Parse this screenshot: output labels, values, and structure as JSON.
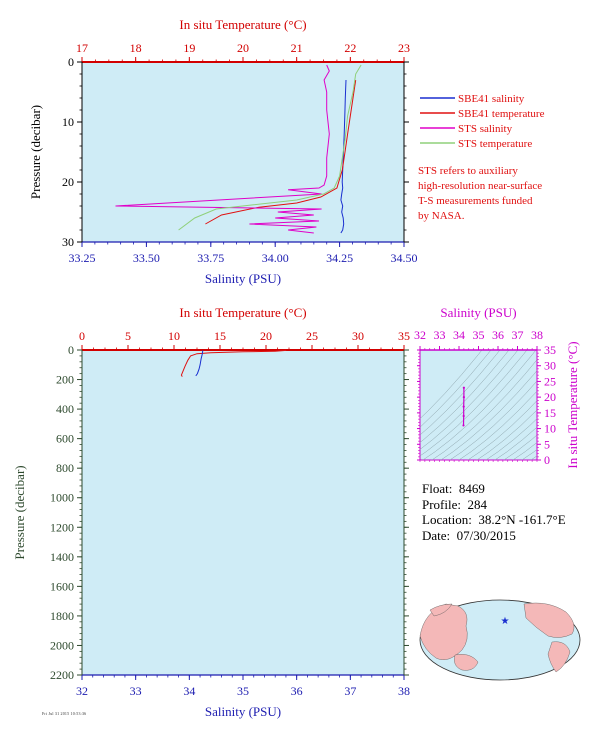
{
  "colors": {
    "plot_bg": "#cfecf6",
    "salinity_axis": "#1c1cb0",
    "temperature_axis": "#d20000",
    "pressure_axis_top": "#000000",
    "pressure_axis_bottom": "#2e4a2e",
    "magenta": "#cc00cc",
    "sbe41_salinity": "#1a2fd0",
    "sbe41_temperature": "#e01010",
    "sts_salinity": "#e000c8",
    "sts_temperature": "#8fd07a",
    "map_land": "#f4b8b8",
    "map_ocean": "#cfecf6",
    "float_marker": "#1a2fd0"
  },
  "top_chart": {
    "temp_axis_title": "In situ Temperature (°C)",
    "temp_ticks": [
      17,
      18,
      19,
      20,
      21,
      22,
      23
    ],
    "temp_range": [
      17,
      23
    ],
    "sal_axis_title": "Salinity (PSU)",
    "sal_ticks": [
      "33.25",
      "33.50",
      "33.75",
      "34.00",
      "34.25",
      "34.50"
    ],
    "sal_range": [
      33.25,
      34.5
    ],
    "pressure_axis_title": "Pressure (decibar)",
    "pressure_ticks": [
      0,
      10,
      20,
      30
    ],
    "pressure_range": [
      0,
      30
    ],
    "legend": [
      {
        "label": "SBE41 salinity",
        "color": "#1a2fd0"
      },
      {
        "label": "SBE41 temperature",
        "color": "#e01010"
      },
      {
        "label": "STS salinity",
        "color": "#e000c8"
      },
      {
        "label": "STS temperature",
        "color": "#8fd07a"
      }
    ],
    "note_lines": [
      "STS refers to auxiliary",
      "high-resolution near-surface",
      "T-S measurements funded",
      "by NASA."
    ]
  },
  "bottom_chart": {
    "temp_axis_title": "In situ Temperature (°C)",
    "temp_ticks": [
      0,
      5,
      10,
      15,
      20,
      25,
      30,
      35
    ],
    "temp_range": [
      0,
      35
    ],
    "sal_axis_title": "Salinity (PSU)",
    "sal_ticks": [
      32,
      33,
      34,
      35,
      36,
      37,
      38
    ],
    "sal_range": [
      32,
      38
    ],
    "pressure_axis_title": "Pressure (decibar)",
    "pressure_ticks": [
      0,
      200,
      400,
      600,
      800,
      1000,
      1200,
      1400,
      1600,
      1800,
      2000,
      2200
    ],
    "pressure_range": [
      0,
      2200
    ]
  },
  "ts_diagram": {
    "sal_axis_title": "Salinity (PSU)",
    "sal_ticks": [
      32,
      33,
      34,
      35,
      36,
      37,
      38
    ],
    "sal_range": [
      32,
      38
    ],
    "temp_axis_title": "In situ Temperature (°C)",
    "temp_ticks": [
      0,
      5,
      10,
      15,
      20,
      25,
      30,
      35
    ],
    "temp_range": [
      0,
      35
    ]
  },
  "info": {
    "float_label": "Float:",
    "float_value": "8469",
    "profile_label": "Profile:",
    "profile_value": "284",
    "location_label": "Location:",
    "location_value": "38.2°N  -161.7°E",
    "date_label": "Date:",
    "date_value": "07/30/2015"
  },
  "footer_small_text": "Fri Jul 31 2015 10:53:36",
  "chart_data": [
    {
      "type": "line",
      "title": "",
      "xlabel": "Salinity (PSU)",
      "x2label": "In situ Temperature (°C)",
      "ylabel": "Pressure (decibar)",
      "xlim": [
        33.25,
        34.5
      ],
      "x2lim": [
        17,
        23
      ],
      "ylim": [
        30,
        0
      ],
      "series": [
        {
          "name": "SBE41 salinity",
          "axis": "salinity",
          "x": [
            34.275,
            34.272,
            34.27,
            34.268,
            34.265,
            34.262,
            34.26,
            34.262,
            34.258,
            34.255,
            34.262,
            34.258,
            34.264,
            34.266,
            34.262,
            34.255
          ],
          "y": [
            3,
            6,
            9,
            12,
            15,
            18,
            20,
            21,
            22,
            23,
            24,
            25,
            26,
            27,
            28,
            28.5
          ]
        },
        {
          "name": "SBE41 temperature",
          "axis": "temperature",
          "x": [
            22.1,
            22.05,
            22.0,
            21.95,
            21.9,
            21.85,
            21.75,
            21.45,
            21.0,
            20.3,
            19.6,
            19.3
          ],
          "y": [
            3,
            6,
            9,
            12,
            15,
            18,
            21,
            22.5,
            23.5,
            24.2,
            25.5,
            27
          ]
        },
        {
          "name": "STS salinity",
          "axis": "salinity",
          "x": [
            34.2,
            34.21,
            34.19,
            34.2,
            34.2,
            34.21,
            34.2,
            34.2,
            34.19,
            34.17,
            34.05,
            34.18,
            33.38,
            34.18,
            34.01,
            34.15,
            34.0,
            34.17,
            33.9,
            34.16,
            34.05,
            34.15
          ],
          "y": [
            0.5,
            1.5,
            3,
            5,
            8,
            12,
            16,
            19,
            20.5,
            21,
            21.3,
            22,
            24,
            24.5,
            25,
            25.5,
            26,
            26.5,
            27,
            27.5,
            28,
            28.5
          ]
        },
        {
          "name": "STS temperature",
          "axis": "temperature",
          "x": [
            22.2,
            22.1,
            22.05,
            21.95,
            21.9,
            21.85,
            21.8,
            21.7,
            21.5,
            21.0,
            20.2,
            19.5,
            19.1,
            18.8
          ],
          "y": [
            0.5,
            2,
            5,
            9,
            13,
            16,
            19,
            21,
            22,
            23,
            23.8,
            24.5,
            26,
            28
          ]
        }
      ]
    },
    {
      "type": "line",
      "title": "",
      "xlabel": "Salinity (PSU)",
      "x2label": "In situ Temperature (°C)",
      "ylabel": "Pressure (decibar)",
      "xlim": [
        32,
        38
      ],
      "x2lim": [
        0,
        35
      ],
      "ylim": [
        2200,
        0
      ],
      "series": [
        {
          "axis": "temperature",
          "x": [
            22.2,
            21.0,
            17.5,
            14.0,
            12.5,
            11.8,
            11.5,
            11.2,
            11.0,
            10.8,
            10.9
          ],
          "y": [
            3,
            8,
            12,
            18,
            25,
            40,
            70,
            110,
            140,
            170,
            180
          ]
        },
        {
          "axis": "salinity",
          "x": [
            34.25,
            34.24,
            34.22,
            34.2,
            34.18,
            34.15,
            34.12
          ],
          "y": [
            3,
            30,
            60,
            100,
            130,
            160,
            175
          ]
        }
      ]
    },
    {
      "type": "scatter",
      "title": "",
      "xlabel": "Salinity (PSU)",
      "ylabel": "In situ Temperature (°C)",
      "xlim": [
        32,
        38
      ],
      "ylim": [
        0,
        35
      ],
      "series": [
        {
          "x": [
            34.25,
            34.25,
            34.24,
            34.24,
            34.23
          ],
          "y": [
            23,
            20,
            17,
            14,
            11
          ]
        }
      ]
    }
  ]
}
